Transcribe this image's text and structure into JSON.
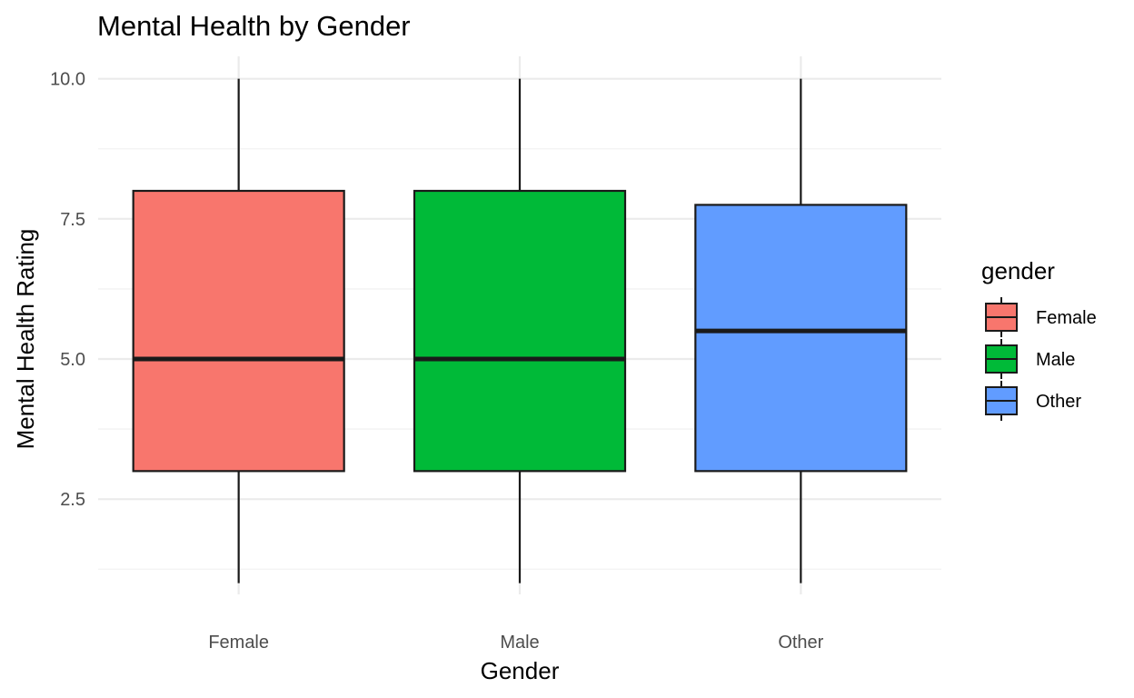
{
  "chart_data": {
    "type": "boxplot",
    "title": "Mental Health by Gender",
    "xlabel": "Gender",
    "ylabel": "Mental Health Rating",
    "categories": [
      "Female",
      "Male",
      "Other"
    ],
    "ylim": [
      0.8,
      10.4
    ],
    "yticks": [
      2.5,
      5.0,
      7.5,
      10.0
    ],
    "ytick_labels": [
      "2.5",
      "5.0",
      "7.5",
      "10.0"
    ],
    "y_minor_ticks": [
      1.25,
      3.75,
      6.25,
      8.75
    ],
    "grid": true,
    "legend": {
      "title": "gender",
      "position": "right",
      "entries": [
        "Female",
        "Male",
        "Other"
      ]
    },
    "boxes": [
      {
        "category": "Female",
        "min": 1,
        "q1": 3,
        "median": 5,
        "q3": 8,
        "max": 10,
        "color": "#F8766D"
      },
      {
        "category": "Male",
        "min": 1,
        "q1": 3,
        "median": 5,
        "q3": 8,
        "max": 10,
        "color": "#00BA38"
      },
      {
        "category": "Other",
        "min": 1,
        "q1": 3,
        "median": 5.5,
        "q3": 7.75,
        "max": 10,
        "color": "#619CFF"
      }
    ]
  }
}
